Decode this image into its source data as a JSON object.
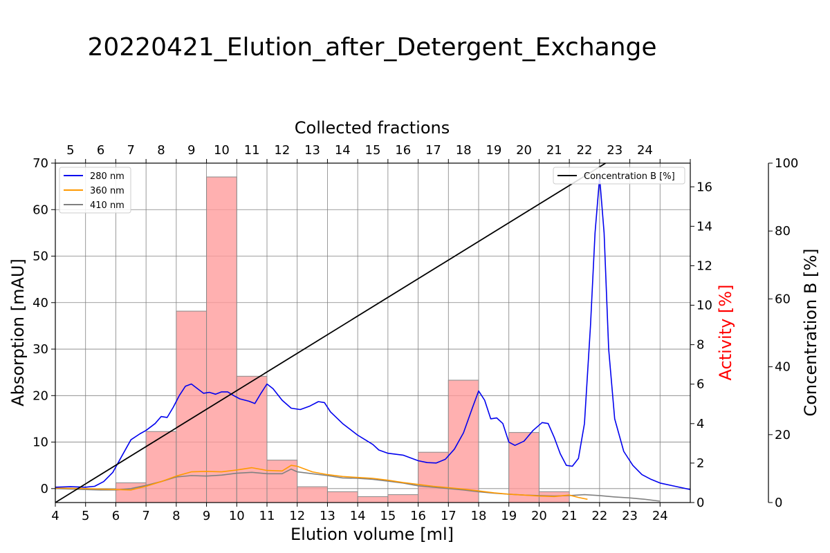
{
  "chart_data": {
    "type": "line",
    "title": "20220421_Elution_after_Detergent_Exchange",
    "xlabel": "Elution volume [ml]",
    "ylabel": "Absorption [mAU]",
    "y2label": "Activity [%]",
    "y3label": "Concentration B [%]",
    "top_xlabel": "Collected fractions",
    "xlim": [
      4,
      25
    ],
    "ylim": [
      -3,
      70
    ],
    "y2lim": [
      0,
      17.2
    ],
    "y3lim": [
      0,
      100
    ],
    "grid": true,
    "colors": {
      "a280": "#0000ee",
      "a360": "#ff9900",
      "a410": "#808080",
      "concentration": "#000000",
      "activity_fill": "#ff9a9a",
      "activity_label": "#ff0000"
    },
    "x_ticks": [
      "4",
      "5",
      "6",
      "7",
      "8",
      "9",
      "10",
      "11",
      "12",
      "13",
      "14",
      "15",
      "16",
      "17",
      "18",
      "19",
      "20",
      "21",
      "22",
      "23",
      "24"
    ],
    "y_ticks": [
      "0",
      "10",
      "20",
      "30",
      "40",
      "50",
      "60",
      "70"
    ],
    "y2_ticks": [
      "0",
      "2",
      "4",
      "6",
      "8",
      "10",
      "12",
      "14",
      "16"
    ],
    "y3_ticks": [
      "0",
      "20",
      "40",
      "60",
      "80",
      "100"
    ],
    "fraction_labels": [
      "5",
      "6",
      "7",
      "8",
      "9",
      "10",
      "11",
      "12",
      "13",
      "14",
      "15",
      "16",
      "17",
      "18",
      "19",
      "20",
      "21",
      "22",
      "23",
      "24"
    ],
    "fraction_boundaries": [
      4,
      5,
      6,
      7,
      8,
      9,
      10,
      11,
      12,
      13,
      14,
      15,
      16,
      17,
      18,
      19,
      20,
      21,
      22,
      23,
      24,
      25
    ],
    "legend_abs": [
      "280 nm",
      "360 nm",
      "410 nm"
    ],
    "legend_conc": "Concentration B [%]",
    "activity_bars": [
      {
        "x0": 6,
        "x1": 7,
        "value": 1.0
      },
      {
        "x0": 7,
        "x1": 8,
        "value": 3.6
      },
      {
        "x0": 8,
        "x1": 9,
        "value": 9.7
      },
      {
        "x0": 9,
        "x1": 10,
        "value": 16.5
      },
      {
        "x0": 10,
        "x1": 11,
        "value": 6.4
      },
      {
        "x0": 11,
        "x1": 12,
        "value": 2.15
      },
      {
        "x0": 12,
        "x1": 13,
        "value": 0.8
      },
      {
        "x0": 13,
        "x1": 14,
        "value": 0.55
      },
      {
        "x0": 14,
        "x1": 15,
        "value": 0.3
      },
      {
        "x0": 15,
        "x1": 16,
        "value": 0.4
      },
      {
        "x0": 16,
        "x1": 17,
        "value": 2.55
      },
      {
        "x0": 17,
        "x1": 18,
        "value": 6.2
      },
      {
        "x0": 19,
        "x1": 20,
        "value": 3.55
      },
      {
        "x0": 20,
        "x1": 21,
        "value": 0.55
      }
    ],
    "series": [
      {
        "name": "280 nm",
        "points": [
          [
            4,
            0.3
          ],
          [
            4.5,
            0.4
          ],
          [
            5,
            0.3
          ],
          [
            5.3,
            0.5
          ],
          [
            5.6,
            1.5
          ],
          [
            5.9,
            3.5
          ],
          [
            6.2,
            7
          ],
          [
            6.5,
            10.5
          ],
          [
            6.8,
            11.8
          ],
          [
            7.0,
            12.5
          ],
          [
            7.3,
            14.0
          ],
          [
            7.5,
            15.5
          ],
          [
            7.7,
            15.3
          ],
          [
            7.9,
            17.5
          ],
          [
            8.1,
            20.0
          ],
          [
            8.3,
            22.0
          ],
          [
            8.5,
            22.5
          ],
          [
            8.7,
            21.5
          ],
          [
            8.9,
            20.5
          ],
          [
            9.1,
            20.7
          ],
          [
            9.3,
            20.3
          ],
          [
            9.5,
            20.8
          ],
          [
            9.7,
            20.8
          ],
          [
            9.9,
            20.0
          ],
          [
            10.1,
            19.3
          ],
          [
            10.4,
            18.8
          ],
          [
            10.6,
            18.3
          ],
          [
            10.8,
            20.5
          ],
          [
            11.0,
            22.5
          ],
          [
            11.2,
            21.5
          ],
          [
            11.5,
            19.0
          ],
          [
            11.8,
            17.3
          ],
          [
            12.1,
            17.0
          ],
          [
            12.4,
            17.7
          ],
          [
            12.7,
            18.7
          ],
          [
            12.9,
            18.5
          ],
          [
            13.1,
            16.5
          ],
          [
            13.5,
            14.0
          ],
          [
            14.0,
            11.5
          ],
          [
            14.5,
            9.5
          ],
          [
            14.7,
            8.3
          ],
          [
            15.0,
            7.6
          ],
          [
            15.5,
            7.2
          ],
          [
            16.0,
            6.0
          ],
          [
            16.3,
            5.6
          ],
          [
            16.6,
            5.5
          ],
          [
            16.9,
            6.3
          ],
          [
            17.2,
            8.5
          ],
          [
            17.5,
            12.0
          ],
          [
            17.8,
            17.5
          ],
          [
            18.0,
            21.0
          ],
          [
            18.2,
            19.0
          ],
          [
            18.4,
            15.0
          ],
          [
            18.6,
            15.2
          ],
          [
            18.8,
            14.0
          ],
          [
            19.0,
            10.0
          ],
          [
            19.2,
            9.3
          ],
          [
            19.5,
            10.2
          ],
          [
            19.8,
            12.5
          ],
          [
            20.1,
            14.2
          ],
          [
            20.3,
            14.0
          ],
          [
            20.5,
            11.0
          ],
          [
            20.7,
            7.5
          ],
          [
            20.9,
            5.0
          ],
          [
            21.1,
            4.8
          ],
          [
            21.3,
            6.5
          ],
          [
            21.5,
            14.0
          ],
          [
            21.7,
            35.0
          ],
          [
            21.85,
            55.0
          ],
          [
            22.0,
            67.0
          ],
          [
            22.15,
            55.0
          ],
          [
            22.3,
            30.0
          ],
          [
            22.5,
            15.0
          ],
          [
            22.8,
            8.0
          ],
          [
            23.1,
            5.0
          ],
          [
            23.4,
            3.0
          ],
          [
            23.7,
            2.0
          ],
          [
            24.0,
            1.2
          ],
          [
            24.5,
            0.5
          ],
          [
            25.0,
            -0.2
          ],
          [
            25.5,
            -0.8
          ],
          [
            26.0,
            -1.5
          ]
        ]
      },
      {
        "name": "360 nm",
        "points": [
          [
            4,
            0.1
          ],
          [
            5,
            0.0
          ],
          [
            5.5,
            -0.1
          ],
          [
            6,
            -0.2
          ],
          [
            6.5,
            -0.3
          ],
          [
            7,
            0.5
          ],
          [
            7.5,
            1.5
          ],
          [
            8,
            2.7
          ],
          [
            8.5,
            3.6
          ],
          [
            9,
            3.7
          ],
          [
            9.5,
            3.6
          ],
          [
            10,
            4.0
          ],
          [
            10.5,
            4.5
          ],
          [
            11,
            3.9
          ],
          [
            11.5,
            3.8
          ],
          [
            11.8,
            5.0
          ],
          [
            12.0,
            4.8
          ],
          [
            12.5,
            3.6
          ],
          [
            13,
            3.0
          ],
          [
            13.5,
            2.6
          ],
          [
            14,
            2.4
          ],
          [
            14.5,
            2.2
          ],
          [
            15,
            1.8
          ],
          [
            15.5,
            1.3
          ],
          [
            16,
            0.9
          ],
          [
            16.5,
            0.5
          ],
          [
            17,
            0.2
          ],
          [
            17.5,
            -0.1
          ],
          [
            18,
            -0.5
          ],
          [
            18.5,
            -0.9
          ],
          [
            19,
            -1.2
          ],
          [
            19.5,
            -1.4
          ],
          [
            20,
            -1.6
          ],
          [
            20.5,
            -1.7
          ],
          [
            21,
            -1.4
          ],
          [
            21.3,
            -1.9
          ],
          [
            21.6,
            -2.3
          ]
        ]
      },
      {
        "name": "410 nm",
        "points": [
          [
            4,
            0.0
          ],
          [
            5,
            -0.2
          ],
          [
            5.5,
            -0.3
          ],
          [
            6,
            -0.3
          ],
          [
            6.5,
            0.0
          ],
          [
            7,
            0.7
          ],
          [
            7.5,
            1.5
          ],
          [
            8,
            2.5
          ],
          [
            8.5,
            2.8
          ],
          [
            9,
            2.7
          ],
          [
            9.5,
            2.9
          ],
          [
            10,
            3.3
          ],
          [
            10.5,
            3.5
          ],
          [
            11,
            3.2
          ],
          [
            11.5,
            3.2
          ],
          [
            11.8,
            4.2
          ],
          [
            12.0,
            3.6
          ],
          [
            12.5,
            3.2
          ],
          [
            13,
            2.8
          ],
          [
            13.5,
            2.3
          ],
          [
            14,
            2.2
          ],
          [
            14.5,
            2.0
          ],
          [
            15,
            1.6
          ],
          [
            15.5,
            1.2
          ],
          [
            16,
            0.6
          ],
          [
            16.5,
            0.3
          ],
          [
            17,
            0.0
          ],
          [
            17.5,
            -0.3
          ],
          [
            18,
            -0.7
          ],
          [
            18.5,
            -1.0
          ],
          [
            19,
            -1.2
          ],
          [
            19.5,
            -1.4
          ],
          [
            20,
            -1.5
          ],
          [
            20.5,
            -1.6
          ],
          [
            21,
            -1.5
          ],
          [
            21.5,
            -1.3
          ],
          [
            22,
            -1.5
          ],
          [
            22.5,
            -1.8
          ],
          [
            23,
            -2.0
          ],
          [
            23.5,
            -2.3
          ],
          [
            24,
            -2.7
          ]
        ]
      },
      {
        "name": "Concentration B [%]",
        "points": [
          [
            4,
            0
          ],
          [
            22.2,
            100
          ]
        ]
      }
    ]
  }
}
